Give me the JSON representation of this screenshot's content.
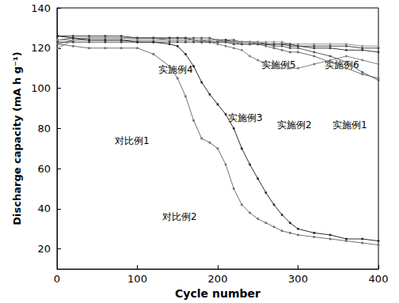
{
  "chart_data": {
    "type": "line",
    "x_label": "Cycle number",
    "y_label": "Discharge capacity (mA h g⁻¹)",
    "xlim": [
      0,
      400
    ],
    "xticks": [
      0,
      100,
      200,
      300,
      400
    ],
    "ylim": [
      10,
      140
    ],
    "yticks": [
      20,
      40,
      60,
      80,
      100,
      120,
      140
    ],
    "grid": false,
    "marker": "circle",
    "x": [
      1,
      20,
      40,
      60,
      80,
      100,
      120,
      140,
      150,
      160,
      170,
      180,
      190,
      200,
      210,
      220,
      230,
      240,
      250,
      260,
      270,
      280,
      290,
      300,
      320,
      340,
      360,
      380,
      400
    ],
    "series": [
      {
        "name": "实施例1",
        "color": "#5a5a5a",
        "values": [
          124,
          125,
          125,
          125,
          125,
          125,
          125,
          125,
          125,
          125,
          125,
          125,
          125,
          124,
          124,
          124,
          123,
          123,
          122,
          122,
          121,
          121,
          120,
          120,
          118,
          116,
          113,
          108,
          104
        ]
      },
      {
        "name": "实施例2",
        "color": "#6e6e6e",
        "values": [
          122,
          124,
          124,
          124,
          124,
          124,
          124,
          124,
          124,
          124,
          124,
          124,
          123,
          123,
          123,
          123,
          122,
          122,
          122,
          121,
          120,
          119,
          118,
          118,
          116,
          113,
          110,
          107,
          105
        ]
      },
      {
        "name": "实施例3",
        "color": "#808080",
        "values": [
          120,
          124,
          125,
          125,
          125,
          125,
          125,
          124,
          124,
          124,
          124,
          123,
          123,
          122,
          121,
          120,
          119,
          116,
          114,
          112,
          111,
          110,
          110,
          110,
          112,
          114,
          116,
          114,
          112
        ]
      },
      {
        "name": "实施例4",
        "color": "#3c3c3c",
        "values": [
          126,
          126,
          126,
          126,
          126,
          125,
          125,
          125,
          125,
          125,
          124,
          124,
          124,
          124,
          124,
          123,
          123,
          123,
          123,
          122,
          122,
          122,
          121,
          121,
          120,
          120,
          119,
          119,
          118
        ]
      },
      {
        "name": "实施例5",
        "color": "#959595",
        "values": [
          124,
          124,
          124,
          124,
          124,
          124,
          124,
          124,
          124,
          124,
          124,
          124,
          124,
          124,
          123,
          123,
          123,
          123,
          123,
          123,
          123,
          123,
          122,
          122,
          122,
          122,
          122,
          121,
          121
        ]
      },
      {
        "name": "实施例6",
        "color": "#4a4a4a",
        "values": [
          123,
          123,
          123,
          123,
          123,
          123,
          123,
          123,
          123,
          123,
          123,
          123,
          123,
          123,
          123,
          122,
          122,
          122,
          122,
          122,
          122,
          122,
          122,
          121,
          121,
          121,
          121,
          120,
          120
        ]
      },
      {
        "name": "对比例1",
        "color": "#707070",
        "values": [
          122,
          121,
          120,
          120,
          120,
          120,
          117,
          111,
          105,
          96,
          84,
          75,
          73,
          70,
          62,
          50,
          42,
          38,
          35,
          33,
          31,
          29,
          28,
          27,
          26,
          25,
          24,
          23,
          22
        ]
      },
      {
        "name": "对比例2",
        "color": "#2a2a2a",
        "values": [
          126,
          125,
          124,
          124,
          124,
          123,
          123,
          122,
          121,
          117,
          111,
          103,
          97,
          92,
          87,
          80,
          70,
          62,
          55,
          48,
          42,
          37,
          33,
          30,
          28,
          27,
          25,
          25,
          24
        ]
      }
    ]
  }
}
